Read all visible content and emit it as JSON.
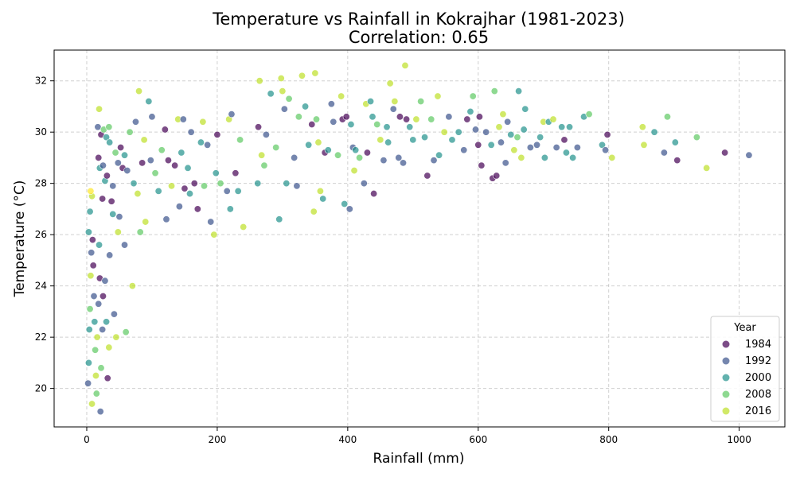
{
  "chart_data": {
    "type": "scatter",
    "title": "Temperature vs Rainfall in Kokrajhar (1981-2023)",
    "subtitle": "Correlation: 0.65",
    "xlabel": "Rainfall (mm)",
    "ylabel": "Temperature (°C)",
    "xlim": [
      -50,
      1070
    ],
    "ylim": [
      18.5,
      33.2
    ],
    "xticks": [
      0,
      200,
      400,
      600,
      800,
      1000
    ],
    "yticks": [
      20,
      22,
      24,
      26,
      28,
      30,
      32
    ],
    "grid": true,
    "legend": {
      "title": "Year",
      "placement": "bottom-right",
      "entries": [
        {
          "label": "1984",
          "color": "#440154"
        },
        {
          "label": "1992",
          "color": "#3b528b"
        },
        {
          "label": "2000",
          "color": "#21918c"
        },
        {
          "label": "2008",
          "color": "#5ec962"
        },
        {
          "label": "2016",
          "color": "#bddf26"
        }
      ]
    },
    "points": [
      [
        2,
        20.2,
        "#3b528b"
      ],
      [
        3,
        21.0,
        "#21918c"
      ],
      [
        4,
        22.3,
        "#21918c"
      ],
      [
        5,
        23.1,
        "#5ec962"
      ],
      [
        6,
        24.4,
        "#bddf26"
      ],
      [
        7,
        25.3,
        "#3b528b"
      ],
      [
        3,
        26.1,
        "#21918c"
      ],
      [
        5,
        26.9,
        "#21918c"
      ],
      [
        8,
        27.5,
        "#bddf26"
      ],
      [
        6,
        27.7,
        "#fde725"
      ],
      [
        9,
        25.8,
        "#440154"
      ],
      [
        10,
        24.8,
        "#440154"
      ],
      [
        11,
        23.6,
        "#3b528b"
      ],
      [
        12,
        22.6,
        "#21918c"
      ],
      [
        13,
        21.5,
        "#5ec962"
      ],
      [
        14,
        20.5,
        "#bddf26"
      ],
      [
        15,
        19.8,
        "#5ec962"
      ],
      [
        8,
        19.4,
        "#bddf26"
      ],
      [
        16,
        22.0,
        "#bddf26"
      ],
      [
        18,
        23.3,
        "#3b528b"
      ],
      [
        20,
        24.3,
        "#440154"
      ],
      [
        19,
        25.6,
        "#21918c"
      ],
      [
        21,
        19.1,
        "#3b528b"
      ],
      [
        22,
        20.8,
        "#5ec962"
      ],
      [
        24,
        22.3,
        "#3b528b"
      ],
      [
        25,
        23.6,
        "#440154"
      ],
      [
        28,
        24.2,
        "#3b528b"
      ],
      [
        30,
        22.6,
        "#21918c"
      ],
      [
        32,
        20.4,
        "#440154"
      ],
      [
        34,
        21.6,
        "#bddf26"
      ],
      [
        35,
        25.2,
        "#3b528b"
      ],
      [
        38,
        27.3,
        "#440154"
      ],
      [
        40,
        26.8,
        "#21918c"
      ],
      [
        42,
        22.9,
        "#3b528b"
      ],
      [
        45,
        22.0,
        "#bddf26"
      ],
      [
        48,
        26.1,
        "#bddf26"
      ],
      [
        50,
        26.7,
        "#3b528b"
      ],
      [
        58,
        25.6,
        "#3b528b"
      ],
      [
        60,
        22.2,
        "#5ec962"
      ],
      [
        70,
        24.0,
        "#bddf26"
      ],
      [
        17,
        30.2,
        "#3b528b"
      ],
      [
        22,
        29.9,
        "#440154"
      ],
      [
        26,
        30.1,
        "#5ec962"
      ],
      [
        30,
        29.8,
        "#21918c"
      ],
      [
        34,
        30.2,
        "#5ec962"
      ],
      [
        18,
        29.0,
        "#440154"
      ],
      [
        20,
        28.6,
        "#21918c"
      ],
      [
        25,
        28.7,
        "#3b528b"
      ],
      [
        28,
        28.1,
        "#21918c"
      ],
      [
        31,
        28.3,
        "#440154"
      ],
      [
        24,
        27.4,
        "#440154"
      ],
      [
        19,
        30.9,
        "#bddf26"
      ],
      [
        35,
        29.6,
        "#21918c"
      ],
      [
        40,
        27.9,
        "#3b528b"
      ],
      [
        44,
        29.2,
        "#5ec962"
      ],
      [
        48,
        28.8,
        "#3b528b"
      ],
      [
        52,
        29.4,
        "#440154"
      ],
      [
        55,
        28.6,
        "#440154"
      ],
      [
        58,
        29.1,
        "#21918c"
      ],
      [
        62,
        28.5,
        "#3b528b"
      ],
      [
        66,
        30.0,
        "#5ec962"
      ],
      [
        72,
        28.0,
        "#21918c"
      ],
      [
        75,
        30.4,
        "#3b528b"
      ],
      [
        78,
        27.6,
        "#bddf26"
      ],
      [
        80,
        31.6,
        "#bddf26"
      ],
      [
        82,
        26.1,
        "#5ec962"
      ],
      [
        85,
        28.8,
        "#440154"
      ],
      [
        88,
        29.7,
        "#bddf26"
      ],
      [
        90,
        26.5,
        "#bddf26"
      ],
      [
        95,
        31.2,
        "#21918c"
      ],
      [
        98,
        28.9,
        "#3b528b"
      ],
      [
        100,
        30.6,
        "#3b528b"
      ],
      [
        105,
        28.4,
        "#5ec962"
      ],
      [
        110,
        27.7,
        "#21918c"
      ],
      [
        115,
        29.3,
        "#5ec962"
      ],
      [
        120,
        30.1,
        "#440154"
      ],
      [
        122,
        26.6,
        "#3b528b"
      ],
      [
        125,
        28.9,
        "#440154"
      ],
      [
        130,
        27.9,
        "#bddf26"
      ],
      [
        135,
        28.7,
        "#440154"
      ],
      [
        140,
        30.5,
        "#bddf26"
      ],
      [
        142,
        27.1,
        "#3b528b"
      ],
      [
        145,
        29.2,
        "#21918c"
      ],
      [
        148,
        30.5,
        "#3b528b"
      ],
      [
        150,
        27.8,
        "#440154"
      ],
      [
        155,
        28.6,
        "#21918c"
      ],
      [
        158,
        27.6,
        "#21918c"
      ],
      [
        160,
        30.0,
        "#3b528b"
      ],
      [
        165,
        28.0,
        "#440154"
      ],
      [
        170,
        27.0,
        "#440154"
      ],
      [
        175,
        29.6,
        "#21918c"
      ],
      [
        178,
        30.4,
        "#bddf26"
      ],
      [
        180,
        27.9,
        "#5ec962"
      ],
      [
        185,
        29.5,
        "#3b528b"
      ],
      [
        190,
        26.5,
        "#3b528b"
      ],
      [
        195,
        26.0,
        "#bddf26"
      ],
      [
        198,
        28.4,
        "#21918c"
      ],
      [
        200,
        29.9,
        "#440154"
      ],
      [
        205,
        28.0,
        "#5ec962"
      ],
      [
        215,
        27.7,
        "#3b528b"
      ],
      [
        218,
        30.5,
        "#bddf26"
      ],
      [
        220,
        27.0,
        "#21918c"
      ],
      [
        222,
        30.7,
        "#3b528b"
      ],
      [
        228,
        28.4,
        "#440154"
      ],
      [
        232,
        27.7,
        "#21918c"
      ],
      [
        235,
        29.7,
        "#5ec962"
      ],
      [
        240,
        26.3,
        "#bddf26"
      ],
      [
        262,
        28.0,
        "#21918c"
      ],
      [
        263,
        30.2,
        "#440154"
      ],
      [
        265,
        32.0,
        "#bddf26"
      ],
      [
        268,
        29.1,
        "#bddf26"
      ],
      [
        272,
        28.7,
        "#5ec962"
      ],
      [
        275,
        29.9,
        "#3b528b"
      ],
      [
        282,
        31.5,
        "#21918c"
      ],
      [
        290,
        29.4,
        "#5ec962"
      ],
      [
        295,
        26.6,
        "#21918c"
      ],
      [
        298,
        32.1,
        "#bddf26"
      ],
      [
        300,
        31.6,
        "#bddf26"
      ],
      [
        303,
        30.9,
        "#3b528b"
      ],
      [
        306,
        28.0,
        "#21918c"
      ],
      [
        310,
        31.3,
        "#5ec962"
      ],
      [
        318,
        29.0,
        "#3b528b"
      ],
      [
        322,
        27.9,
        "#3b528b"
      ],
      [
        325,
        30.6,
        "#5ec962"
      ],
      [
        330,
        32.2,
        "#bddf26"
      ],
      [
        335,
        31.0,
        "#21918c"
      ],
      [
        340,
        29.5,
        "#21918c"
      ],
      [
        345,
        30.3,
        "#440154"
      ],
      [
        348,
        26.9,
        "#bddf26"
      ],
      [
        350,
        32.3,
        "#bddf26"
      ],
      [
        352,
        30.5,
        "#5ec962"
      ],
      [
        355,
        29.6,
        "#bddf26"
      ],
      [
        358,
        27.7,
        "#bddf26"
      ],
      [
        362,
        27.4,
        "#21918c"
      ],
      [
        365,
        29.2,
        "#440154"
      ],
      [
        370,
        29.3,
        "#21918c"
      ],
      [
        375,
        31.1,
        "#3b528b"
      ],
      [
        378,
        30.4,
        "#3b528b"
      ],
      [
        385,
        29.1,
        "#5ec962"
      ],
      [
        390,
        31.4,
        "#bddf26"
      ],
      [
        392,
        30.5,
        "#440154"
      ],
      [
        395,
        27.2,
        "#21918c"
      ],
      [
        398,
        30.6,
        "#440154"
      ],
      [
        403,
        27.0,
        "#3b528b"
      ],
      [
        405,
        30.3,
        "#21918c"
      ],
      [
        408,
        29.4,
        "#3b528b"
      ],
      [
        410,
        28.5,
        "#bddf26"
      ],
      [
        412,
        29.3,
        "#21918c"
      ],
      [
        418,
        29.0,
        "#5ec962"
      ],
      [
        425,
        28.0,
        "#3b528b"
      ],
      [
        428,
        31.1,
        "#bddf26"
      ],
      [
        430,
        29.2,
        "#440154"
      ],
      [
        435,
        31.2,
        "#21918c"
      ],
      [
        438,
        30.6,
        "#21918c"
      ],
      [
        440,
        27.6,
        "#440154"
      ],
      [
        445,
        30.3,
        "#5ec962"
      ],
      [
        450,
        29.7,
        "#bddf26"
      ],
      [
        455,
        28.9,
        "#3b528b"
      ],
      [
        460,
        30.2,
        "#21918c"
      ],
      [
        462,
        29.6,
        "#21918c"
      ],
      [
        465,
        31.9,
        "#bddf26"
      ],
      [
        470,
        30.9,
        "#3b528b"
      ],
      [
        472,
        31.2,
        "#bddf26"
      ],
      [
        478,
        29.0,
        "#3b528b"
      ],
      [
        480,
        30.6,
        "#440154"
      ],
      [
        485,
        28.8,
        "#3b528b"
      ],
      [
        488,
        32.6,
        "#bddf26"
      ],
      [
        490,
        30.5,
        "#440154"
      ],
      [
        495,
        30.2,
        "#21918c"
      ],
      [
        500,
        29.7,
        "#21918c"
      ],
      [
        505,
        30.5,
        "#bddf26"
      ],
      [
        512,
        31.2,
        "#5ec962"
      ],
      [
        518,
        29.8,
        "#21918c"
      ],
      [
        522,
        28.3,
        "#440154"
      ],
      [
        528,
        30.5,
        "#5ec962"
      ],
      [
        532,
        28.9,
        "#3b528b"
      ],
      [
        538,
        31.4,
        "#bddf26"
      ],
      [
        540,
        29.1,
        "#21918c"
      ],
      [
        548,
        30.0,
        "#bddf26"
      ],
      [
        555,
        30.6,
        "#3b528b"
      ],
      [
        560,
        29.7,
        "#21918c"
      ],
      [
        570,
        30.0,
        "#21918c"
      ],
      [
        578,
        29.3,
        "#3b528b"
      ],
      [
        583,
        30.5,
        "#440154"
      ],
      [
        588,
        30.8,
        "#21918c"
      ],
      [
        592,
        31.4,
        "#5ec962"
      ],
      [
        596,
        30.1,
        "#3b528b"
      ],
      [
        600,
        29.5,
        "#440154"
      ],
      [
        602,
        30.6,
        "#440154"
      ],
      [
        605,
        28.7,
        "#440154"
      ],
      [
        612,
        30.0,
        "#3b528b"
      ],
      [
        620,
        29.5,
        "#21918c"
      ],
      [
        622,
        28.2,
        "#440154"
      ],
      [
        625,
        31.6,
        "#5ec962"
      ],
      [
        628,
        28.3,
        "#440154"
      ],
      [
        632,
        30.2,
        "#bddf26"
      ],
      [
        635,
        29.6,
        "#3b528b"
      ],
      [
        638,
        30.7,
        "#bddf26"
      ],
      [
        642,
        28.8,
        "#3b528b"
      ],
      [
        645,
        30.4,
        "#3b528b"
      ],
      [
        650,
        29.9,
        "#21918c"
      ],
      [
        655,
        29.3,
        "#bddf26"
      ],
      [
        660,
        29.8,
        "#5ec962"
      ],
      [
        662,
        31.6,
        "#21918c"
      ],
      [
        666,
        29.0,
        "#bddf26"
      ],
      [
        670,
        30.1,
        "#21918c"
      ],
      [
        672,
        30.9,
        "#21918c"
      ],
      [
        680,
        29.4,
        "#3b528b"
      ],
      [
        690,
        29.5,
        "#3b528b"
      ],
      [
        695,
        29.8,
        "#21918c"
      ],
      [
        700,
        30.4,
        "#bddf26"
      ],
      [
        702,
        29.0,
        "#21918c"
      ],
      [
        708,
        30.4,
        "#21918c"
      ],
      [
        715,
        30.5,
        "#bddf26"
      ],
      [
        720,
        29.4,
        "#3b528b"
      ],
      [
        728,
        30.2,
        "#21918c"
      ],
      [
        732,
        29.7,
        "#440154"
      ],
      [
        735,
        29.2,
        "#21918c"
      ],
      [
        740,
        30.2,
        "#21918c"
      ],
      [
        745,
        29.0,
        "#21918c"
      ],
      [
        752,
        29.4,
        "#3b528b"
      ],
      [
        762,
        30.6,
        "#21918c"
      ],
      [
        770,
        30.7,
        "#5ec962"
      ],
      [
        790,
        29.5,
        "#21918c"
      ],
      [
        795,
        29.3,
        "#3b528b"
      ],
      [
        798,
        29.9,
        "#440154"
      ],
      [
        805,
        29.0,
        "#bddf26"
      ],
      [
        852,
        30.2,
        "#bddf26"
      ],
      [
        854,
        29.5,
        "#bddf26"
      ],
      [
        870,
        30.0,
        "#21918c"
      ],
      [
        885,
        29.2,
        "#3b528b"
      ],
      [
        890,
        30.6,
        "#5ec962"
      ],
      [
        902,
        29.6,
        "#21918c"
      ],
      [
        905,
        28.9,
        "#440154"
      ],
      [
        935,
        29.8,
        "#5ec962"
      ],
      [
        950,
        28.6,
        "#bddf26"
      ],
      [
        978,
        29.2,
        "#440154"
      ],
      [
        1015,
        29.1,
        "#3b528b"
      ]
    ]
  }
}
